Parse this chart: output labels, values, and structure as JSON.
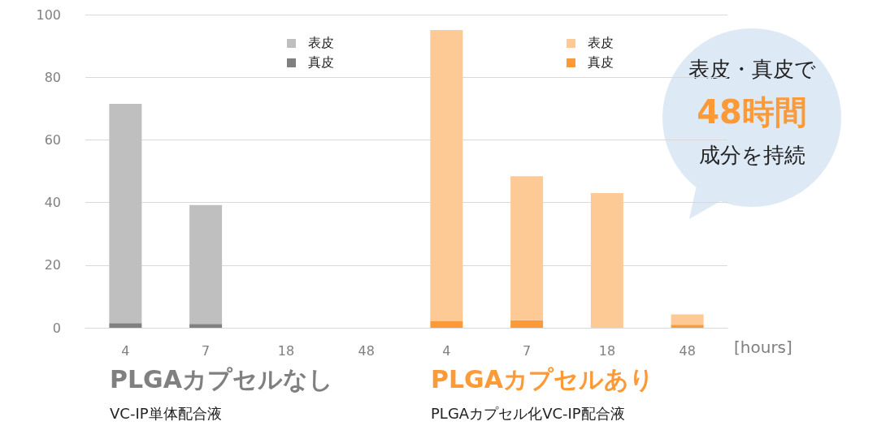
{
  "chart_data": {
    "type": "bar",
    "stacked": true,
    "xlabel": "[hours]",
    "categories": [
      "4",
      "7",
      "18",
      "48",
      "4",
      "7",
      "18",
      "48"
    ],
    "series": [
      {
        "name": "真皮",
        "color": "#808080",
        "values": [
          1.5,
          1.2,
          0,
          0,
          null,
          null,
          null,
          null
        ]
      },
      {
        "name": "表皮",
        "color": "#bfbfbf",
        "values": [
          70,
          38,
          0,
          0,
          null,
          null,
          null,
          null
        ]
      },
      {
        "name": "真皮",
        "color": "#fd9a38",
        "values": [
          null,
          null,
          null,
          null,
          2.1,
          2.4,
          0,
          1
        ]
      },
      {
        "name": "表皮",
        "color": "#fdc994",
        "values": [
          null,
          null,
          null,
          null,
          93,
          46,
          43,
          3.3
        ]
      }
    ],
    "ylim": [
      0,
      100
    ],
    "yticks": [
      0,
      20,
      40,
      60,
      80,
      100
    ],
    "grid": "y",
    "legend": "top",
    "annotations": [
      "PLGAカプセルなし",
      "VC-IP単体配合液",
      "PLGAカプセルあり",
      "PLGAカプセル化VC-IP配合液",
      "表皮・真皮で",
      "48時間",
      "成分を持続"
    ]
  }
}
